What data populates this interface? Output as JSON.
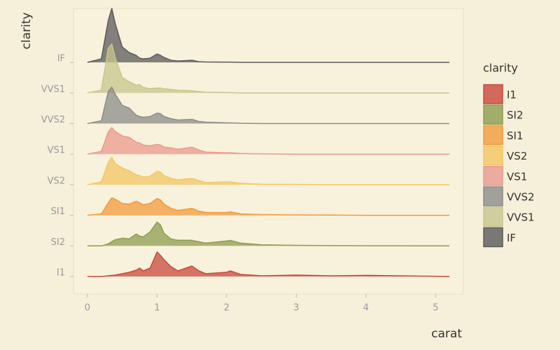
{
  "chart_data": {
    "type": "ridgeline",
    "x_label": "carat",
    "y_label": "clarity",
    "legend_title": "clarity",
    "legend": "right",
    "xlim": [
      -0.2,
      5.4
    ],
    "xticks": [
      0,
      1,
      2,
      3,
      4,
      5
    ],
    "x": [
      0,
      0.2,
      0.3,
      0.35,
      0.4,
      0.5,
      0.6,
      0.7,
      0.75,
      0.8,
      0.9,
      1.0,
      1.05,
      1.1,
      1.2,
      1.3,
      1.5,
      1.6,
      1.7,
      2.0,
      2.05,
      2.2,
      2.5,
      3.0,
      3.5,
      4.0,
      5.2
    ],
    "series": [
      {
        "name": "I1",
        "color": "#c9483c",
        "values": [
          0,
          0,
          0.05,
          0.08,
          0.1,
          0.2,
          0.3,
          0.45,
          0.6,
          0.4,
          0.6,
          1.75,
          1.5,
          1.2,
          0.7,
          0.4,
          0.75,
          0.4,
          0.2,
          0.3,
          0.4,
          0.15,
          0.05,
          0.1,
          0.05,
          0.08,
          0
        ]
      },
      {
        "name": "SI2",
        "color": "#8d9c4f",
        "values": [
          0,
          0,
          0.15,
          0.3,
          0.45,
          0.55,
          0.5,
          0.85,
          0.7,
          0.65,
          1.0,
          1.7,
          1.5,
          0.9,
          0.5,
          0.4,
          0.4,
          0.3,
          0.2,
          0.35,
          0.4,
          0.2,
          0.08,
          0.04,
          0.02,
          0.01,
          0
        ]
      },
      {
        "name": "SI1",
        "color": "#f39a3c",
        "values": [
          0,
          0.1,
          0.9,
          1.25,
          1.15,
          0.85,
          0.8,
          1.0,
          0.9,
          0.75,
          0.85,
          1.2,
          1.1,
          0.8,
          0.5,
          0.35,
          0.5,
          0.3,
          0.2,
          0.2,
          0.25,
          0.1,
          0.05,
          0.03,
          0.02,
          0,
          0
        ]
      },
      {
        "name": "VS2",
        "color": "#f3c663",
        "values": [
          0,
          0.2,
          1.6,
          1.95,
          1.5,
          1.2,
          1.0,
          0.7,
          0.65,
          0.55,
          0.6,
          0.95,
          0.9,
          0.65,
          0.45,
          0.35,
          0.45,
          0.3,
          0.15,
          0.2,
          0.2,
          0.1,
          0.03,
          0.02,
          0,
          0,
          0
        ]
      },
      {
        "name": "VS1",
        "color": "#e99a8e",
        "values": [
          0,
          0.2,
          1.6,
          1.9,
          1.6,
          1.3,
          1.2,
          0.85,
          0.8,
          0.65,
          0.6,
          0.7,
          0.65,
          0.5,
          0.45,
          0.35,
          0.5,
          0.3,
          0.15,
          0.1,
          0.1,
          0.05,
          0.02,
          0,
          0,
          0,
          0
        ]
      },
      {
        "name": "VVS2",
        "color": "#8c8c8a",
        "values": [
          0,
          0.2,
          2.3,
          2.6,
          2.1,
          1.3,
          1.1,
          0.6,
          0.5,
          0.45,
          0.5,
          0.75,
          0.7,
          0.5,
          0.35,
          0.25,
          0.3,
          0.15,
          0.1,
          0.05,
          0.05,
          0.02,
          0,
          0,
          0,
          0,
          0
        ]
      },
      {
        "name": "VVS1",
        "color": "#c7c68c",
        "values": [
          0,
          0.2,
          3.2,
          3.5,
          2.5,
          1.1,
          0.8,
          0.55,
          0.6,
          0.4,
          0.3,
          0.35,
          0.35,
          0.3,
          0.25,
          0.2,
          0.15,
          0.1,
          0.05,
          0.02,
          0.02,
          0,
          0,
          0,
          0,
          0,
          0
        ]
      },
      {
        "name": "IF",
        "color": "#5a5a5a",
        "values": [
          0,
          0.25,
          3,
          3.85,
          2.75,
          1.1,
          0.7,
          0.5,
          0.3,
          0.25,
          0.3,
          0.6,
          0.5,
          0.35,
          0.15,
          0.1,
          0.15,
          0.05,
          0.03,
          0.02,
          0.02,
          0,
          0,
          0,
          0,
          0,
          0
        ]
      }
    ]
  }
}
